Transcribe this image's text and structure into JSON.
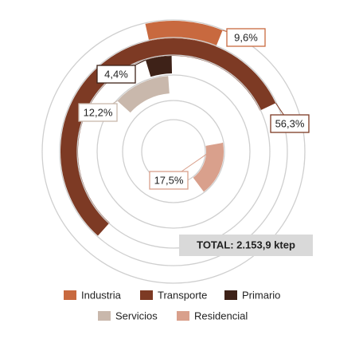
{
  "chart_data": {
    "type": "radial_bar",
    "categories": [
      "Industria",
      "Transporte",
      "Primario",
      "Servicios",
      "Residencial"
    ],
    "values": [
      9.6,
      56.3,
      4.4,
      12.2,
      17.5
    ],
    "value_labels": [
      "9,6%",
      "56,3%",
      "4,4%",
      "12,2%",
      "17,5%"
    ],
    "colors": [
      "#c8693f",
      "#7d3a24",
      "#3e2218",
      "#c9b8ac",
      "#d9a08c"
    ],
    "vmax": 100,
    "annotation": "TOTAL: 2.153,9 ktep"
  }
}
